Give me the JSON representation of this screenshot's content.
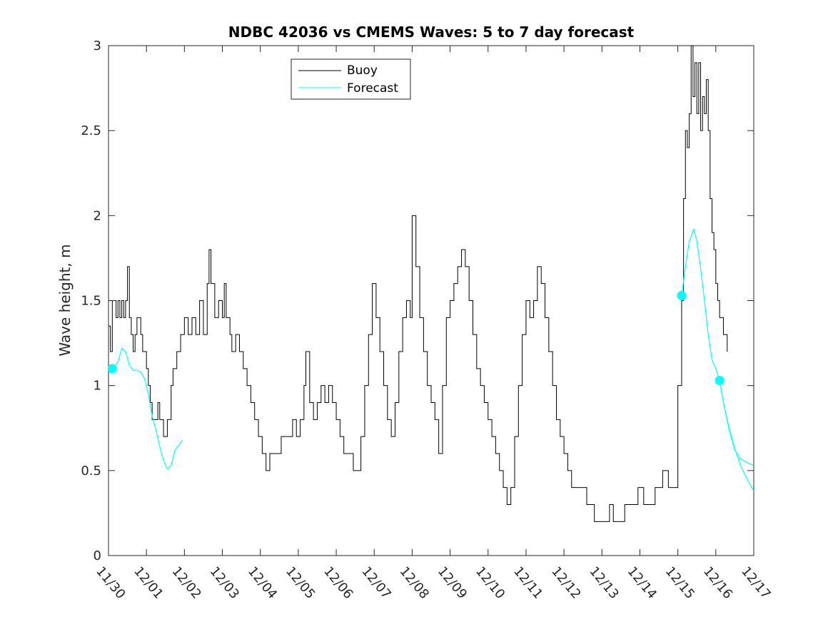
{
  "chart_data": {
    "type": "line",
    "title": "NDBC 42036 vs CMEMS Waves: 5 to 7 day forecast",
    "xlabel": "",
    "ylabel": "Wave height, m",
    "xlim": [
      0,
      17
    ],
    "ylim": [
      0,
      3
    ],
    "x_tick_values": [
      0,
      1,
      2,
      3,
      4,
      5,
      6,
      7,
      8,
      9,
      10,
      11,
      12,
      13,
      14,
      15,
      16,
      17
    ],
    "x_tick_labels": [
      "11/30",
      "12/01",
      "12/02",
      "12/03",
      "12/04",
      "12/05",
      "12/06",
      "12/07",
      "12/08",
      "12/09",
      "12/10",
      "12/11",
      "12/12",
      "12/13",
      "12/14",
      "12/15",
      "12/16",
      "12/17"
    ],
    "y_ticks": [
      0,
      0.5,
      1,
      1.5,
      2,
      2.5,
      3
    ],
    "y_tick_labels": [
      "0",
      "0.5",
      "1",
      "1.5",
      "2",
      "2.5",
      "3"
    ],
    "grid": false,
    "legend_position": "top-center",
    "series": [
      {
        "name": "Buoy",
        "color": "#000000",
        "points": [
          [
            0.0,
            1.35
          ],
          [
            0.05,
            1.2
          ],
          [
            0.1,
            1.5
          ],
          [
            0.2,
            1.4
          ],
          [
            0.25,
            1.5
          ],
          [
            0.3,
            1.4
          ],
          [
            0.35,
            1.5
          ],
          [
            0.4,
            1.4
          ],
          [
            0.45,
            1.5
          ],
          [
            0.5,
            1.7
          ],
          [
            0.55,
            1.4
          ],
          [
            0.6,
            1.3
          ],
          [
            0.65,
            1.2
          ],
          [
            0.7,
            1.3
          ],
          [
            0.75,
            1.4
          ],
          [
            0.85,
            1.3
          ],
          [
            0.9,
            1.2
          ],
          [
            1.0,
            1.1
          ],
          [
            1.05,
            1.0
          ],
          [
            1.1,
            0.9
          ],
          [
            1.15,
            0.8
          ],
          [
            1.3,
            0.9
          ],
          [
            1.35,
            0.8
          ],
          [
            1.45,
            0.7
          ],
          [
            1.55,
            0.8
          ],
          [
            1.65,
            1.0
          ],
          [
            1.7,
            1.1
          ],
          [
            1.8,
            1.2
          ],
          [
            1.9,
            1.3
          ],
          [
            2.0,
            1.4
          ],
          [
            2.1,
            1.3
          ],
          [
            2.2,
            1.4
          ],
          [
            2.3,
            1.3
          ],
          [
            2.4,
            1.5
          ],
          [
            2.5,
            1.3
          ],
          [
            2.6,
            1.6
          ],
          [
            2.65,
            1.8
          ],
          [
            2.7,
            1.6
          ],
          [
            2.8,
            1.4
          ],
          [
            2.9,
            1.5
          ],
          [
            3.0,
            1.4
          ],
          [
            3.05,
            1.6
          ],
          [
            3.1,
            1.4
          ],
          [
            3.2,
            1.3
          ],
          [
            3.25,
            1.2
          ],
          [
            3.35,
            1.3
          ],
          [
            3.45,
            1.2
          ],
          [
            3.55,
            1.1
          ],
          [
            3.65,
            1.0
          ],
          [
            3.75,
            0.9
          ],
          [
            3.85,
            0.8
          ],
          [
            3.95,
            0.7
          ],
          [
            4.05,
            0.6
          ],
          [
            4.15,
            0.5
          ],
          [
            4.25,
            0.6
          ],
          [
            4.35,
            0.6
          ],
          [
            4.45,
            0.6
          ],
          [
            4.55,
            0.7
          ],
          [
            4.7,
            0.7
          ],
          [
            4.85,
            0.8
          ],
          [
            4.95,
            0.7
          ],
          [
            5.05,
            0.8
          ],
          [
            5.15,
            1.0
          ],
          [
            5.2,
            1.2
          ],
          [
            5.3,
            0.9
          ],
          [
            5.4,
            0.8
          ],
          [
            5.5,
            0.9
          ],
          [
            5.6,
            1.0
          ],
          [
            5.7,
            0.9
          ],
          [
            5.8,
            1.0
          ],
          [
            5.9,
            0.9
          ],
          [
            6.0,
            0.8
          ],
          [
            6.1,
            0.7
          ],
          [
            6.2,
            0.6
          ],
          [
            6.35,
            0.6
          ],
          [
            6.45,
            0.5
          ],
          [
            6.55,
            0.5
          ],
          [
            6.65,
            0.7
          ],
          [
            6.75,
            1.0
          ],
          [
            6.85,
            1.3
          ],
          [
            6.95,
            1.6
          ],
          [
            7.05,
            1.4
          ],
          [
            7.15,
            1.2
          ],
          [
            7.25,
            1.0
          ],
          [
            7.35,
            0.8
          ],
          [
            7.45,
            0.7
          ],
          [
            7.55,
            0.9
          ],
          [
            7.65,
            1.2
          ],
          [
            7.75,
            1.4
          ],
          [
            7.85,
            1.5
          ],
          [
            7.95,
            1.4
          ],
          [
            8.0,
            2.0
          ],
          [
            8.1,
            1.7
          ],
          [
            8.2,
            1.4
          ],
          [
            8.3,
            1.2
          ],
          [
            8.4,
            1.0
          ],
          [
            8.5,
            0.9
          ],
          [
            8.6,
            0.8
          ],
          [
            8.7,
            0.6
          ],
          [
            8.8,
            1.0
          ],
          [
            8.9,
            1.4
          ],
          [
            9.0,
            1.5
          ],
          [
            9.1,
            1.6
          ],
          [
            9.2,
            1.7
          ],
          [
            9.3,
            1.8
          ],
          [
            9.4,
            1.7
          ],
          [
            9.5,
            1.5
          ],
          [
            9.6,
            1.3
          ],
          [
            9.7,
            1.1
          ],
          [
            9.8,
            1.0
          ],
          [
            9.9,
            0.9
          ],
          [
            10.0,
            0.8
          ],
          [
            10.1,
            0.7
          ],
          [
            10.2,
            0.6
          ],
          [
            10.3,
            0.5
          ],
          [
            10.4,
            0.4
          ],
          [
            10.5,
            0.3
          ],
          [
            10.6,
            0.4
          ],
          [
            10.7,
            0.7
          ],
          [
            10.8,
            1.0
          ],
          [
            10.9,
            1.3
          ],
          [
            11.0,
            1.5
          ],
          [
            11.1,
            1.4
          ],
          [
            11.2,
            1.5
          ],
          [
            11.3,
            1.7
          ],
          [
            11.4,
            1.6
          ],
          [
            11.5,
            1.4
          ],
          [
            11.6,
            1.2
          ],
          [
            11.7,
            1.0
          ],
          [
            11.8,
            0.8
          ],
          [
            11.9,
            0.7
          ],
          [
            12.0,
            0.6
          ],
          [
            12.1,
            0.5
          ],
          [
            12.2,
            0.4
          ],
          [
            12.4,
            0.4
          ],
          [
            12.6,
            0.3
          ],
          [
            12.8,
            0.2
          ],
          [
            13.1,
            0.2
          ],
          [
            13.2,
            0.3
          ],
          [
            13.3,
            0.2
          ],
          [
            13.5,
            0.2
          ],
          [
            13.6,
            0.3
          ],
          [
            13.8,
            0.3
          ],
          [
            13.95,
            0.4
          ],
          [
            14.1,
            0.3
          ],
          [
            14.3,
            0.3
          ],
          [
            14.4,
            0.4
          ],
          [
            14.6,
            0.5
          ],
          [
            14.75,
            0.4
          ],
          [
            14.9,
            0.4
          ],
          [
            15.0,
            1.0
          ],
          [
            15.1,
            1.5
          ],
          [
            15.15,
            2.1
          ],
          [
            15.2,
            2.5
          ],
          [
            15.25,
            2.4
          ],
          [
            15.3,
            2.6
          ],
          [
            15.35,
            3.0
          ],
          [
            15.4,
            2.7
          ],
          [
            15.45,
            2.9
          ],
          [
            15.5,
            2.6
          ],
          [
            15.55,
            2.9
          ],
          [
            15.6,
            2.5
          ],
          [
            15.65,
            2.7
          ],
          [
            15.7,
            2.6
          ],
          [
            15.75,
            2.8
          ],
          [
            15.8,
            2.5
          ],
          [
            15.85,
            2.1
          ],
          [
            15.9,
            1.9
          ],
          [
            15.95,
            1.8
          ],
          [
            16.0,
            1.6
          ],
          [
            16.05,
            1.5
          ],
          [
            16.1,
            1.4
          ],
          [
            16.15,
            1.4
          ],
          [
            16.2,
            1.3
          ],
          [
            16.25,
            1.3
          ],
          [
            16.3,
            1.2
          ]
        ]
      },
      {
        "name": "Forecast",
        "color": "#00ffff",
        "segments": [
          [
            [
              0.1,
              1.1
            ],
            [
              0.25,
              1.14
            ],
            [
              0.35,
              1.22
            ],
            [
              0.45,
              1.2
            ],
            [
              0.55,
              1.12
            ],
            [
              0.65,
              1.09
            ],
            [
              0.75,
              1.09
            ],
            [
              0.85,
              1.08
            ],
            [
              0.95,
              1.04
            ],
            [
              1.05,
              0.95
            ],
            [
              1.15,
              0.82
            ],
            [
              1.25,
              0.74
            ],
            [
              1.35,
              0.64
            ],
            [
              1.45,
              0.56
            ],
            [
              1.55,
              0.51
            ],
            [
              1.65,
              0.53
            ],
            [
              1.75,
              0.62
            ],
            [
              1.85,
              0.65
            ],
            [
              1.95,
              0.68
            ]
          ],
          [
            [
              15.1,
              1.53
            ],
            [
              15.2,
              1.7
            ],
            [
              15.3,
              1.85
            ],
            [
              15.42,
              1.92
            ],
            [
              15.5,
              1.85
            ],
            [
              15.6,
              1.69
            ],
            [
              15.7,
              1.5
            ],
            [
              15.8,
              1.3
            ],
            [
              15.9,
              1.15
            ],
            [
              16.0,
              1.1
            ],
            [
              16.1,
              1.03
            ],
            [
              16.2,
              0.9
            ],
            [
              16.35,
              0.74
            ],
            [
              16.5,
              0.62
            ],
            [
              16.65,
              0.57
            ],
            [
              16.8,
              0.55
            ],
            [
              17.0,
              0.53
            ]
          ],
          [
            [
              16.1,
              1.03
            ],
            [
              16.2,
              0.9
            ],
            [
              16.35,
              0.75
            ],
            [
              16.5,
              0.63
            ],
            [
              16.65,
              0.53
            ],
            [
              16.8,
              0.46
            ],
            [
              17.0,
              0.38
            ]
          ]
        ],
        "markers": [
          [
            0.1,
            1.1
          ],
          [
            15.1,
            1.53
          ],
          [
            16.1,
            1.03
          ]
        ]
      }
    ]
  }
}
